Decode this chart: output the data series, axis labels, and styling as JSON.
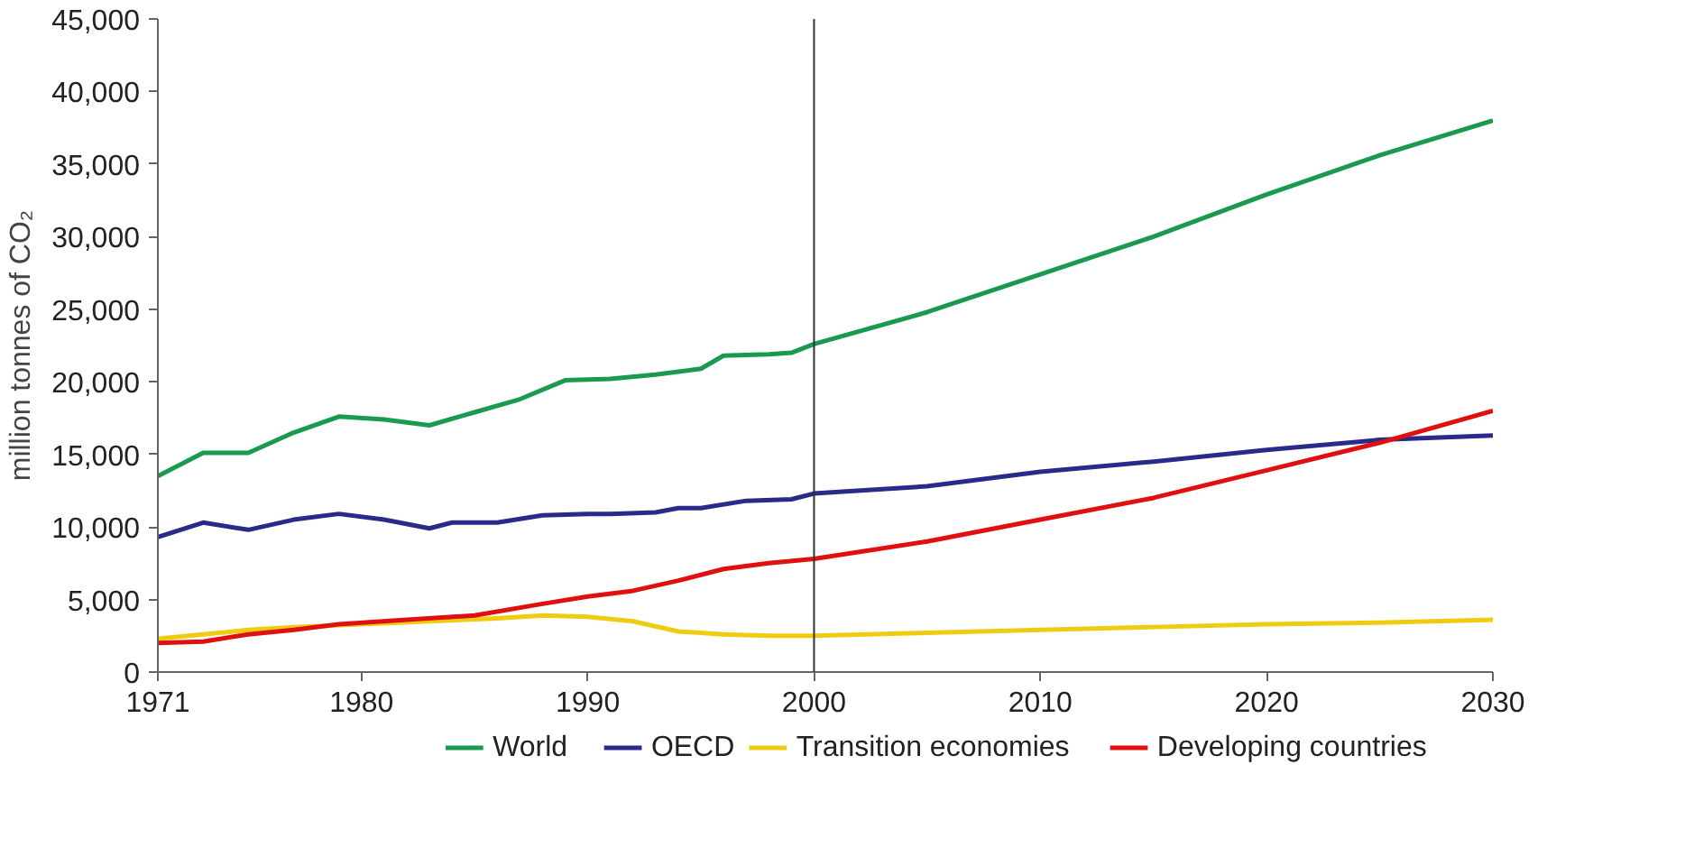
{
  "chart_data": {
    "type": "line",
    "ylabel": "million tonnes of CO₂",
    "xlim": [
      1971,
      2030
    ],
    "xticks": [
      1971,
      1980,
      1990,
      2000,
      2010,
      2020,
      2030
    ],
    "ylim": [
      0,
      45000
    ],
    "yticks": [
      {
        "value": 0,
        "label": "0"
      },
      {
        "value": 5000,
        "label": "5,000"
      },
      {
        "value": 10000,
        "label": "10,000"
      },
      {
        "value": 15000,
        "label": "15,000"
      },
      {
        "value": 20000,
        "label": "20,000"
      },
      {
        "value": 25000,
        "label": "25,000"
      },
      {
        "value": 30000,
        "label": "30,000"
      },
      {
        "value": 35000,
        "label": "35,000"
      },
      {
        "value": 40000,
        "label": "40,000"
      },
      {
        "value": 45000,
        "label": "45,000"
      }
    ],
    "grid": false,
    "legend": "bottom",
    "marker": "none",
    "line_style": "solid",
    "ref_lines": [
      {
        "axis": "x",
        "value": 2000,
        "color": "#333333"
      }
    ],
    "series": [
      {
        "name": "World",
        "color": "#1a9a50",
        "x": [
          1971,
          1973,
          1975,
          1977,
          1979,
          1981,
          1983,
          1985,
          1987,
          1989,
          1991,
          1993,
          1995,
          1996,
          1998,
          1999,
          2000,
          2005,
          2010,
          2015,
          2020,
          2025,
          2030
        ],
        "values": [
          13500,
          15100,
          15100,
          16500,
          17600,
          17400,
          17000,
          17900,
          18800,
          20100,
          20200,
          20500,
          20900,
          21800,
          21900,
          22000,
          22600,
          24800,
          27400,
          30000,
          32900,
          35600,
          38000
        ]
      },
      {
        "name": "OECD",
        "color": "#2a2a8a",
        "x": [
          1971,
          1973,
          1975,
          1977,
          1979,
          1981,
          1983,
          1984,
          1986,
          1988,
          1990,
          1991,
          1993,
          1994,
          1995,
          1997,
          1999,
          2000,
          2005,
          2010,
          2015,
          2020,
          2025,
          2030
        ],
        "values": [
          9300,
          10300,
          9800,
          10500,
          10900,
          10500,
          9900,
          10300,
          10300,
          10800,
          10900,
          10900,
          11000,
          11300,
          11300,
          11800,
          11900,
          12300,
          12800,
          13800,
          14500,
          15300,
          16000,
          16300
        ]
      },
      {
        "name": "Transition economies",
        "color": "#f0cc10",
        "x": [
          1971,
          1973,
          1975,
          1977,
          1980,
          1983,
          1986,
          1988,
          1990,
          1992,
          1994,
          1996,
          1998,
          2000,
          2005,
          2010,
          2015,
          2020,
          2025,
          2030
        ],
        "values": [
          2300,
          2600,
          2900,
          3100,
          3300,
          3500,
          3700,
          3900,
          3800,
          3500,
          2800,
          2600,
          2500,
          2500,
          2700,
          2900,
          3100,
          3300,
          3400,
          3600
        ]
      },
      {
        "name": "Developing countries",
        "color": "#e01010",
        "x": [
          1971,
          1973,
          1975,
          1977,
          1979,
          1982,
          1985,
          1988,
          1990,
          1992,
          1994,
          1996,
          1998,
          2000,
          2005,
          2010,
          2015,
          2020,
          2025,
          2030
        ],
        "values": [
          2000,
          2100,
          2600,
          2900,
          3300,
          3600,
          3900,
          4700,
          5200,
          5600,
          6300,
          7100,
          7500,
          7800,
          9000,
          10500,
          12000,
          13900,
          15800,
          18000
        ]
      }
    ]
  }
}
